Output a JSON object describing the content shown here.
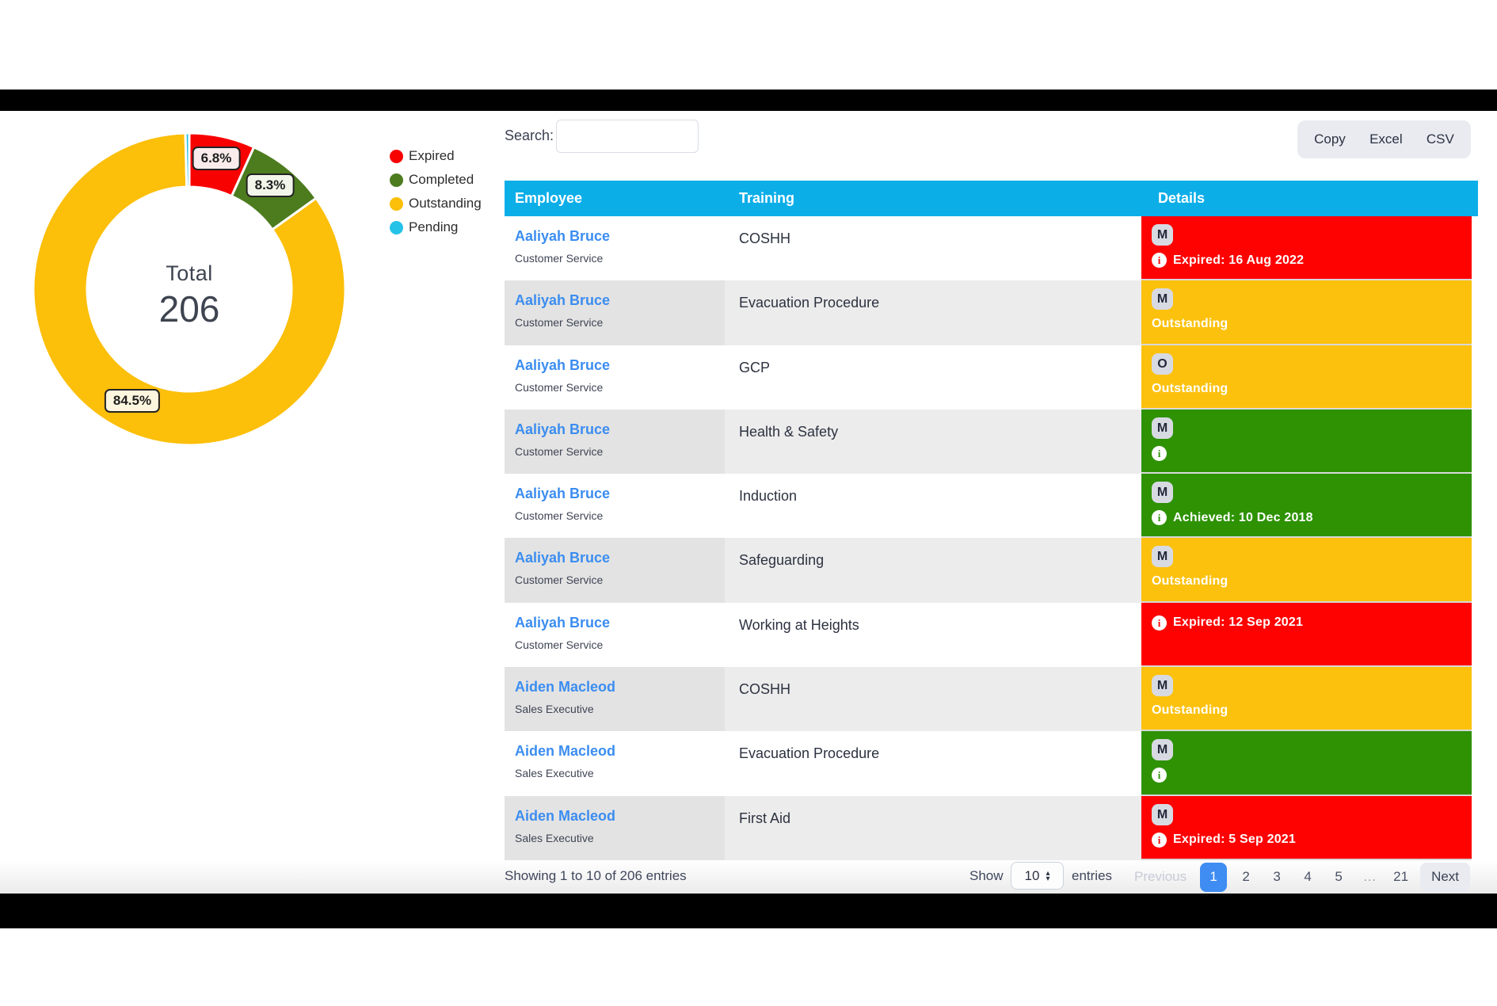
{
  "chart_data": {
    "type": "pie",
    "subtype": "donut",
    "title": "",
    "center_label": "Total",
    "center_value": "206",
    "labels": [
      "Expired",
      "Completed",
      "Outstanding",
      "Pending"
    ],
    "values_pct": [
      6.8,
      8.3,
      84.5,
      0.4
    ],
    "slice_labels": {
      "expired": "6.8%",
      "completed": "8.3%",
      "outstanding": "84.5%"
    },
    "colors": [
      "#f80201",
      "#4d7c1f",
      "#fcbf0a",
      "#25c2e8"
    ],
    "legend_position": "right"
  },
  "toolbar": {
    "search_label": "Search:",
    "search_value": "",
    "export_buttons": [
      "Copy",
      "Excel",
      "CSV"
    ]
  },
  "table": {
    "headers": [
      "Employee",
      "Training",
      "Details"
    ],
    "header_color": "#0caee8",
    "status_colors": {
      "expired": "#fe0101",
      "outstanding": "#fcc10d",
      "completed": "#2e9203"
    },
    "rows": [
      {
        "employee": "Aaliyah Bruce",
        "role": "Customer Service",
        "training": "COSHH",
        "badge": "M",
        "status": "expired",
        "detail_text": "Expired: 16 Aug 2022",
        "info_icon": true
      },
      {
        "employee": "Aaliyah Bruce",
        "role": "Customer Service",
        "training": "Evacuation Procedure",
        "badge": "M",
        "status": "outstanding",
        "detail_text": "Outstanding",
        "info_icon": false
      },
      {
        "employee": "Aaliyah Bruce",
        "role": "Customer Service",
        "training": "GCP",
        "badge": "O",
        "status": "outstanding",
        "detail_text": "Outstanding",
        "info_icon": false
      },
      {
        "employee": "Aaliyah Bruce",
        "role": "Customer Service",
        "training": "Health & Safety",
        "badge": "M",
        "status": "completed",
        "detail_text": "",
        "info_icon": true
      },
      {
        "employee": "Aaliyah Bruce",
        "role": "Customer Service",
        "training": "Induction",
        "badge": "M",
        "status": "completed",
        "detail_text": "Achieved: 10 Dec 2018",
        "info_icon": true
      },
      {
        "employee": "Aaliyah Bruce",
        "role": "Customer Service",
        "training": "Safeguarding",
        "badge": "M",
        "status": "outstanding",
        "detail_text": "Outstanding",
        "info_icon": false
      },
      {
        "employee": "Aaliyah Bruce",
        "role": "Customer Service",
        "training": "Working at Heights",
        "badge": "",
        "status": "expired",
        "detail_text": "Expired: 12 Sep 2021",
        "info_icon": true
      },
      {
        "employee": "Aiden Macleod",
        "role": "Sales Executive",
        "training": "COSHH",
        "badge": "M",
        "status": "outstanding",
        "detail_text": "Outstanding",
        "info_icon": false
      },
      {
        "employee": "Aiden Macleod",
        "role": "Sales Executive",
        "training": "Evacuation Procedure",
        "badge": "M",
        "status": "completed",
        "detail_text": "",
        "info_icon": true
      },
      {
        "employee": "Aiden Macleod",
        "role": "Sales Executive",
        "training": "First Aid",
        "badge": "M",
        "status": "expired",
        "detail_text": "Expired: 5 Sep 2021",
        "info_icon": true
      }
    ]
  },
  "footer": {
    "showing_text": "Showing 1 to 10 of 206 entries",
    "show_label": "Show",
    "page_size_value": "10",
    "entries_label": "entries",
    "previous_label": "Previous",
    "pages": [
      "1",
      "2",
      "3",
      "4",
      "5",
      "…",
      "21"
    ],
    "active_page": "1",
    "next_label": "Next",
    "active_page_color": "#3f8cf2"
  }
}
